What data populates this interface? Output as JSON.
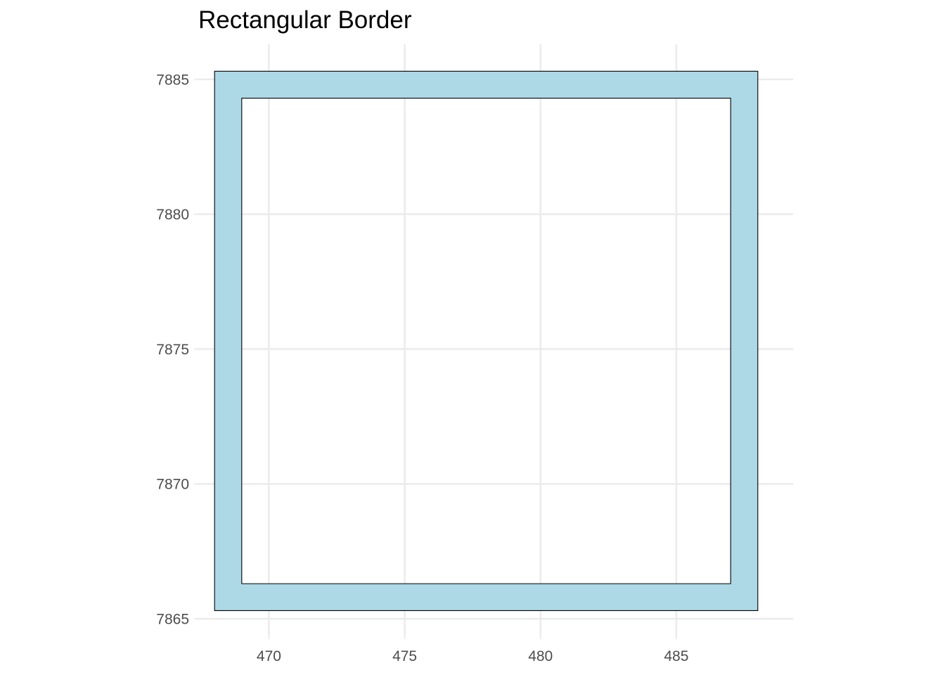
{
  "chart_data": {
    "type": "polygon",
    "title": "Rectangular Border",
    "xlabel": "",
    "ylabel": "",
    "xlim": [
      467.4,
      489.3
    ],
    "ylim": [
      7864.4,
      7886.3
    ],
    "x_ticks": [
      470,
      475,
      480,
      485
    ],
    "y_ticks": [
      7865,
      7870,
      7875,
      7880,
      7885
    ],
    "grid": true,
    "shapes": [
      {
        "name": "border",
        "fill": "#add8e6",
        "stroke": "#000000",
        "outer": {
          "xmin": 468.0,
          "xmax": 488.0,
          "ymin": 7865.3,
          "ymax": 7885.3
        },
        "inner": {
          "xmin": 469.0,
          "xmax": 487.0,
          "ymin": 7866.3,
          "ymax": 7884.3
        }
      }
    ]
  },
  "colors": {
    "grid": "#ebebeb",
    "tick_text": "#4d4d4d",
    "tick_mark": "#ebebeb"
  }
}
